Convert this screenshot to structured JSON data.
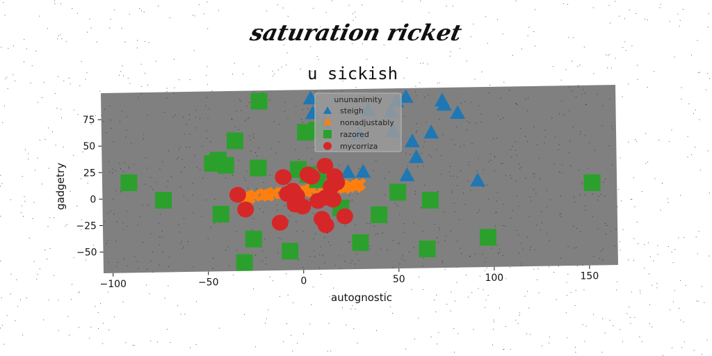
{
  "page_title": "saturation ricket",
  "chart_data": {
    "type": "scatter",
    "title": "u sickish",
    "xlabel": "autognostic",
    "ylabel": "gadgetry",
    "xlim": [
      -105,
      165
    ],
    "ylim": [
      -70,
      100
    ],
    "xticks": [
      -100,
      -50,
      0,
      50,
      100,
      150
    ],
    "yticks": [
      -50,
      -25,
      0,
      25,
      50,
      75
    ],
    "plot_background": "#808080",
    "legend": {
      "title": "ununanimity",
      "placement": "top-center"
    },
    "series": [
      {
        "name": "steigh",
        "marker": "triangle",
        "color": "#1f77b4",
        "points": [
          [
            5,
            92
          ],
          [
            50,
            88
          ],
          [
            55,
            92
          ],
          [
            35,
            80
          ],
          [
            47,
            78
          ],
          [
            75,
            84
          ],
          [
            74,
            88
          ],
          [
            82,
            76
          ],
          [
            68,
            58
          ],
          [
            58,
            50
          ],
          [
            48,
            60
          ],
          [
            60,
            35
          ],
          [
            32,
            22
          ],
          [
            24,
            22
          ],
          [
            55,
            18
          ],
          [
            92,
            12
          ],
          [
            30,
            58
          ],
          [
            12,
            68
          ],
          [
            6,
            78
          ]
        ]
      },
      {
        "name": "nonadjustably",
        "marker": "x",
        "color": "#ff7f0e",
        "points": [
          [
            -30,
            0
          ],
          [
            -25,
            1
          ],
          [
            -20,
            2
          ],
          [
            -15,
            3
          ],
          [
            -10,
            3
          ],
          [
            -5,
            4
          ],
          [
            0,
            5
          ],
          [
            5,
            6
          ],
          [
            10,
            6
          ],
          [
            15,
            7
          ],
          [
            20,
            8
          ],
          [
            25,
            9
          ],
          [
            30,
            10
          ],
          [
            -28,
            -1
          ],
          [
            -18,
            1
          ],
          [
            -8,
            2
          ],
          [
            2,
            4
          ],
          [
            12,
            5
          ],
          [
            22,
            7
          ],
          [
            28,
            8
          ]
        ]
      },
      {
        "name": "razored",
        "marker": "square",
        "color": "#2ca02c",
        "points": [
          [
            -22,
            90
          ],
          [
            2,
            60
          ],
          [
            8,
            62
          ],
          [
            -35,
            53
          ],
          [
            -44,
            35
          ],
          [
            -47,
            32
          ],
          [
            -40,
            30
          ],
          [
            -23,
            27
          ],
          [
            -91,
            15
          ],
          [
            -73,
            -2
          ],
          [
            -43,
            -16
          ],
          [
            -26,
            -40
          ],
          [
            -31,
            -62
          ],
          [
            -7,
            -52
          ],
          [
            30,
            -45
          ],
          [
            40,
            -19
          ],
          [
            50,
            2
          ],
          [
            67,
            -6
          ],
          [
            20,
            -12
          ],
          [
            65,
            -52
          ],
          [
            97,
            -42
          ],
          [
            152,
            8
          ],
          [
            3,
            20
          ],
          [
            8,
            15
          ],
          [
            -2,
            25
          ]
        ]
      },
      {
        "name": "mycorriza",
        "marker": "circle",
        "color": "#d62728",
        "points": [
          [
            -34,
            2
          ],
          [
            -30,
            -12
          ],
          [
            -10,
            18
          ],
          [
            -8,
            2
          ],
          [
            -5,
            5
          ],
          [
            -4,
            -8
          ],
          [
            -12,
            -25
          ],
          [
            3,
            20
          ],
          [
            5,
            18
          ],
          [
            12,
            28
          ],
          [
            17,
            18
          ],
          [
            18,
            12
          ],
          [
            15,
            8
          ],
          [
            12,
            -2
          ],
          [
            8,
            -5
          ],
          [
            10,
            -22
          ],
          [
            12,
            -28
          ],
          [
            22,
            -20
          ],
          [
            0,
            -10
          ],
          [
            -3,
            0
          ],
          [
            16,
            -4
          ]
        ]
      }
    ]
  }
}
